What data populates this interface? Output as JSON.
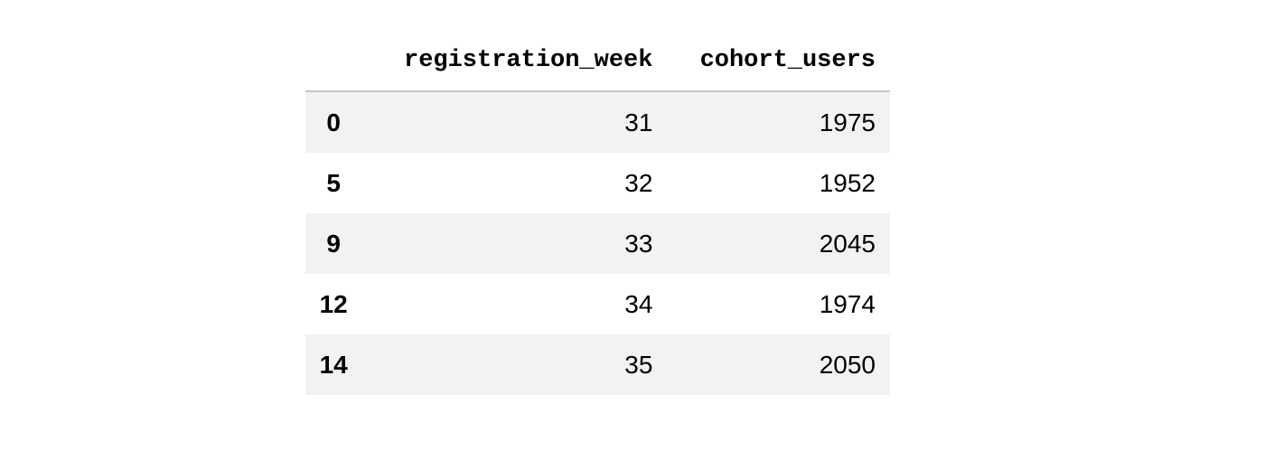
{
  "table": {
    "index_header": "",
    "columns": [
      "registration_week",
      "cohort_users"
    ],
    "rows": [
      {
        "index": "0",
        "registration_week": "31",
        "cohort_users": "1975"
      },
      {
        "index": "5",
        "registration_week": "32",
        "cohort_users": "1952"
      },
      {
        "index": "9",
        "registration_week": "33",
        "cohort_users": "2045"
      },
      {
        "index": "12",
        "registration_week": "34",
        "cohort_users": "1974"
      },
      {
        "index": "14",
        "registration_week": "35",
        "cohort_users": "2050"
      }
    ],
    "colors": {
      "striped_row_bg": "#f2f2f2",
      "header_border": "#c8c8c8"
    }
  }
}
